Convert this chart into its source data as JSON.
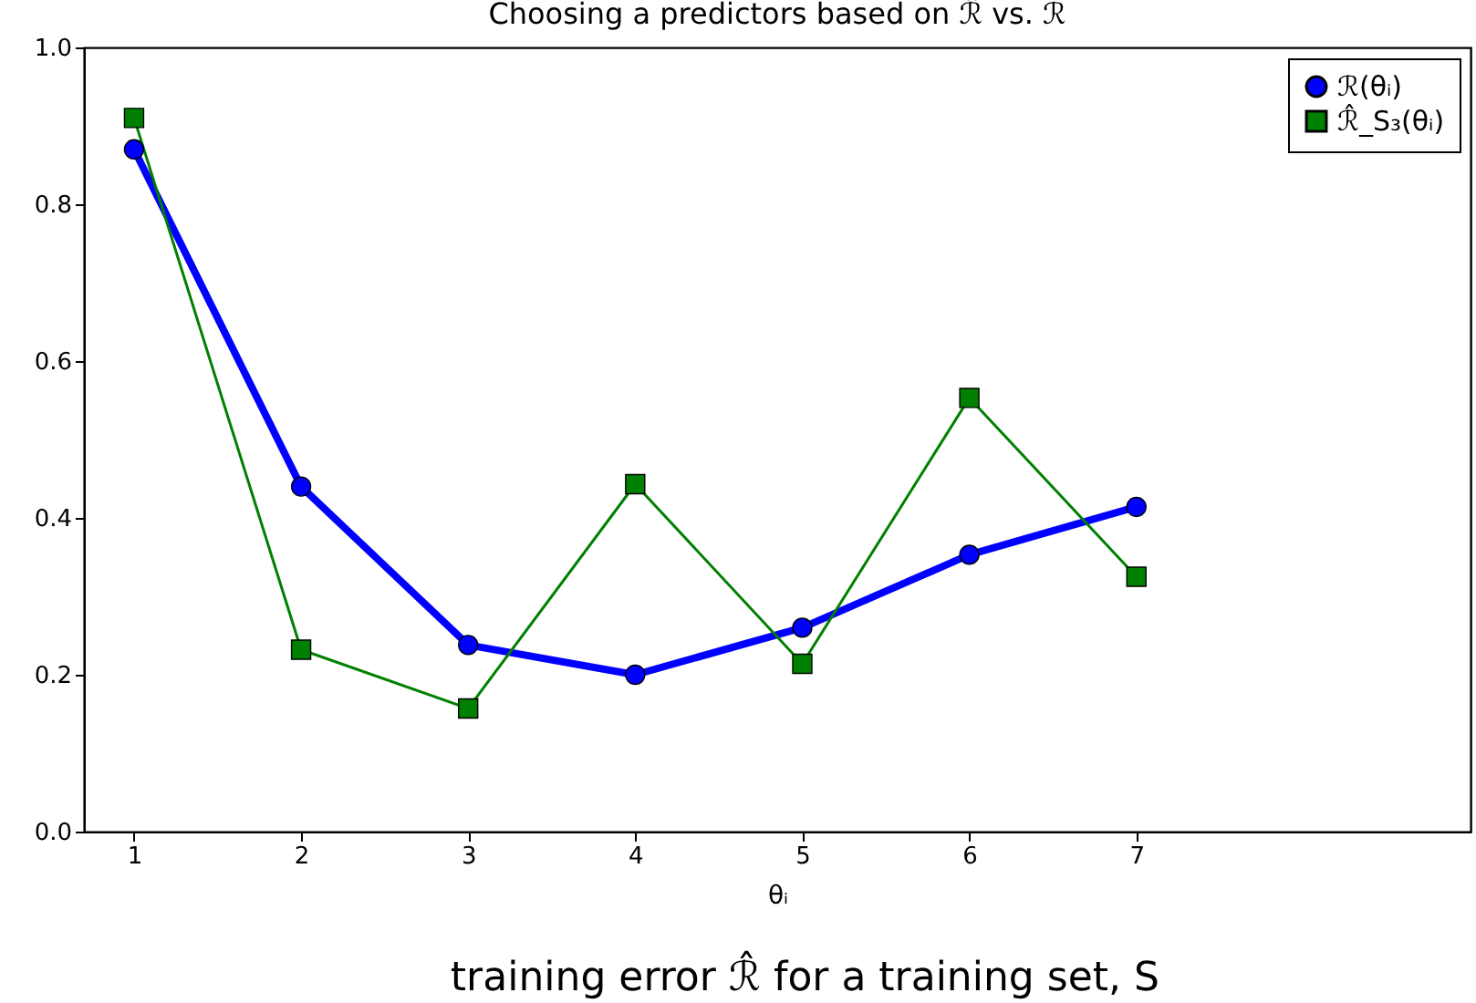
{
  "chart_data": {
    "type": "line",
    "title": "Choosing a predictors based on ℛ̂ vs. ℛ",
    "xlabel": "θᵢ",
    "x": [
      1,
      2,
      3,
      4,
      5,
      6,
      7
    ],
    "series": [
      {
        "name": "ℛ(θᵢ)",
        "color": "#0000ff",
        "marker": "circle",
        "values": [
          0.87,
          0.44,
          0.238,
          0.2,
          0.26,
          0.353,
          0.414
        ]
      },
      {
        "name": "ℛ̂_S₃(θᵢ)",
        "color": "#008000",
        "marker": "square",
        "values": [
          0.91,
          0.232,
          0.157,
          0.443,
          0.214,
          0.553,
          0.325
        ]
      }
    ],
    "xlim": [
      0.7,
      9
    ],
    "xticks": [
      1,
      2,
      3,
      4,
      5,
      6,
      7
    ],
    "ylim": [
      0,
      1
    ],
    "yticks": [
      {
        "value": 0,
        "label": "0.0"
      },
      0.2,
      0.4,
      0.6,
      0.8,
      {
        "value": 1,
        "label": "1.0"
      }
    ],
    "grid": false,
    "legend": "top right",
    "annotations": [
      "training error ℛ̂ for a training set, S"
    ]
  }
}
